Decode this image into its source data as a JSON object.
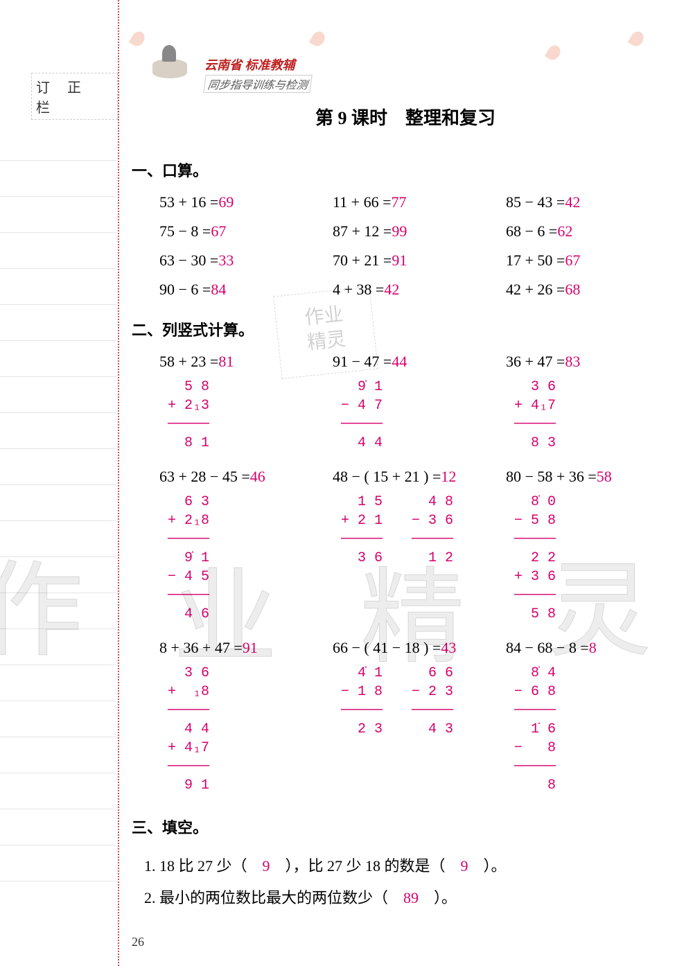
{
  "margin_label": "订 正 栏",
  "header": {
    "brand_prefix": "云南省",
    "brand_main": "标准教辅",
    "subtitle": "同步指导训练与检测"
  },
  "title": "第 9 课时　整理和复习",
  "sec1_head": "一、口算。",
  "mental": [
    {
      "e": "53 + 16 =",
      "a": "69"
    },
    {
      "e": "11 + 66 =",
      "a": "77"
    },
    {
      "e": "85 − 43 =",
      "a": "42"
    },
    {
      "e": "75 − 8 =",
      "a": "67"
    },
    {
      "e": "87 + 12 =",
      "a": "99"
    },
    {
      "e": "68 − 6 =",
      "a": "62"
    },
    {
      "e": "63 − 30 =",
      "a": "33"
    },
    {
      "e": "70 + 21 =",
      "a": "91"
    },
    {
      "e": "17 + 50 =",
      "a": "67"
    },
    {
      "e": "90 − 6 =",
      "a": "84"
    },
    {
      "e": "4 + 38 =",
      "a": "42"
    },
    {
      "e": "42 + 26 =",
      "a": "68"
    }
  ],
  "sec2_head": "二、列竖式计算。",
  "vrow1": [
    {
      "eq": "58 + 23 =",
      "ans": "81",
      "work": "   5 8\n + 2₁3\n ─────\n   8 1"
    },
    {
      "eq": "91 − 47 =",
      "ans": "44",
      "work": "   9̇ 1\n − 4 7\n ─────\n   4 4"
    },
    {
      "eq": "36 + 47 =",
      "ans": "83",
      "work": "   3 6\n + 4₁7\n ─────\n   8 3"
    }
  ],
  "vrow2": [
    {
      "eq": "63 + 28 − 45 =",
      "ans": "46",
      "work": "   6 3\n + 2₁8\n ─────\n   9̇ 1\n − 4 5\n ─────\n   4 6"
    },
    {
      "eq": "48 − ( 15 + 21 ) =",
      "ans": "12",
      "workL": "   1 5\n + 2 1\n ─────\n   3 6",
      "workR": "   4 8\n − 3 6\n ─────\n   1 2"
    },
    {
      "eq": "80 − 58 + 36 =",
      "ans": "58",
      "work": "   8̇ 0\n − 5 8\n ─────\n   2 2\n + 3 6\n ─────\n   5 8"
    }
  ],
  "vrow3": [
    {
      "eq": "8 + 36 + 47 =",
      "ans": "91",
      "work": "   3 6\n +  ₁8\n ─────\n   4 4\n + 4₁7\n ─────\n   9 1"
    },
    {
      "eq": "66 − ( 41 − 18 ) =",
      "ans": "43",
      "workL": "   4̇ 1\n − 1 8\n ─────\n   2 3",
      "workR": "   6 6\n − 2 3\n ─────\n   4 3"
    },
    {
      "eq": "84 − 68 − 8 =",
      "ans": "8",
      "work": "   8̇ 4\n − 6 8\n ─────\n   1̇ 6\n −   8\n ─────\n     8"
    }
  ],
  "sec3_head": "三、填空。",
  "fill": [
    {
      "pre": "1.  18 比 27 少（　",
      "a": "9",
      "mid": "　），比 27 少 18 的数是（　",
      "a2": "9",
      "post": "　）。"
    },
    {
      "pre": "2.  最小的两位数比最大的两位数少（　",
      "a": "89",
      "post": "　）。"
    }
  ],
  "pagenum": "26",
  "watermark": "作业精灵",
  "stamp_l1": "作业",
  "stamp_l2": "精灵",
  "colors": {
    "answer": "#d6006c",
    "text": "#000000",
    "margin_rule": "#e5e5e5",
    "dash": "#c94b5a"
  }
}
